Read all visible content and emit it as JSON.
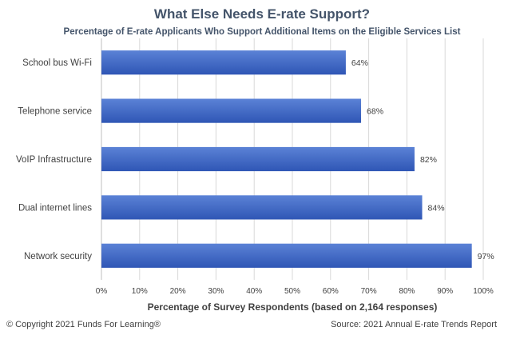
{
  "colors": {
    "bar_fill_top": "#5b82d6",
    "bar_fill_bottom": "#2f56b5",
    "grid": "#d9d9d9",
    "text": "#404040",
    "title": "#44546a"
  },
  "chart_data": {
    "type": "bar",
    "orientation": "horizontal",
    "title": "What Else Needs E-rate Support?",
    "subtitle": "Percentage of E-rate Applicants Who Support Additional Items on the Eligible Services List",
    "categories": [
      "School bus Wi-Fi",
      "Telephone service",
      "VoIP Infrastructure",
      "Dual internet lines",
      "Network security"
    ],
    "values": [
      64,
      68,
      82,
      84,
      97
    ],
    "data_labels": [
      "64%",
      "68%",
      "82%",
      "84%",
      "97%"
    ],
    "xlabel": "Percentage of Survey Respondents (based on 2,164 responses)",
    "ylabel": "",
    "xlim": [
      0,
      100
    ],
    "x_ticks": [
      0,
      10,
      20,
      30,
      40,
      50,
      60,
      70,
      80,
      90,
      100
    ],
    "x_tick_labels": [
      "0%",
      "10%",
      "20%",
      "30%",
      "40%",
      "50%",
      "60%",
      "70%",
      "80%",
      "90%",
      "100%"
    ],
    "grid": true,
    "legend": "none"
  },
  "footer": {
    "copyright": "© Copyright 2021 Funds For Learning®",
    "source": "Source: 2021 Annual E-rate Trends Report"
  }
}
